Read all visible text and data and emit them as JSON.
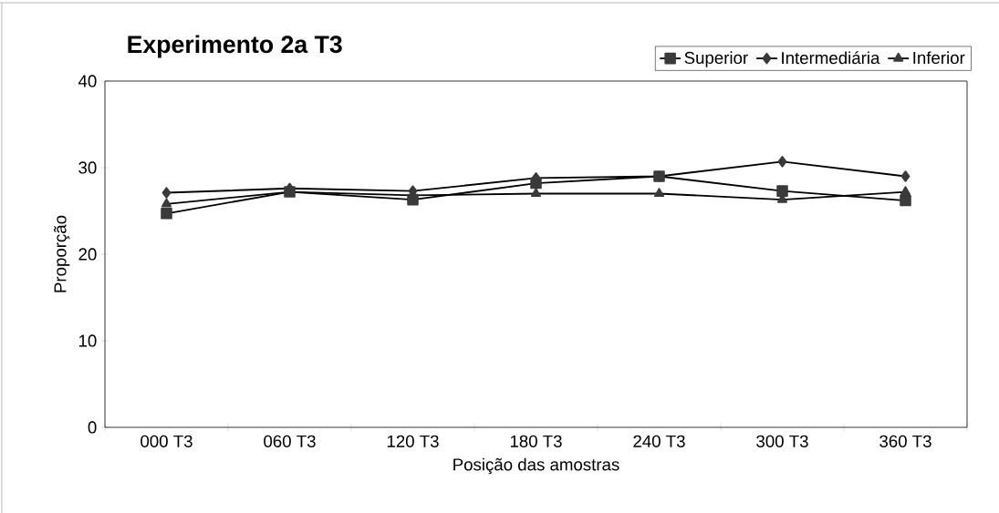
{
  "chart_data": {
    "type": "line",
    "title": "Experimento 2a T3",
    "xlabel": "Posição das amostras",
    "ylabel": "Proporção",
    "categories": [
      "000 T3",
      "060 T3",
      "120 T3",
      "180 T3",
      "240 T3",
      "300 T3",
      "360 T3"
    ],
    "series": [
      {
        "name": "Superior",
        "color": "#3a3a3a",
        "marker": "square",
        "values": [
          24.7,
          27.2,
          26.3,
          28.2,
          29.0,
          27.3,
          26.2
        ]
      },
      {
        "name": "Intermediária",
        "color": "#3a3a3a",
        "marker": "diamond",
        "values": [
          27.1,
          27.6,
          27.3,
          28.8,
          29.0,
          30.7,
          29.0
        ]
      },
      {
        "name": "Inferior",
        "color": "#3a3a3a",
        "marker": "triangle",
        "values": [
          25.8,
          27.2,
          26.8,
          27.0,
          27.0,
          26.3,
          27.2
        ]
      }
    ],
    "ylim": [
      0,
      40
    ],
    "yticks": [
      0,
      10,
      20,
      30,
      40
    ],
    "grid": false,
    "legend": "top right",
    "line_style": "solid"
  }
}
